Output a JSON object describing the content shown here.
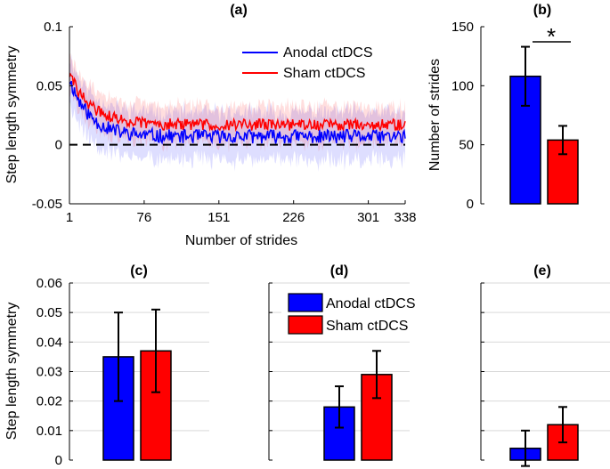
{
  "colors": {
    "anodal": "#0000ff",
    "sham": "#ff0000",
    "grid": "#d9d9d9"
  },
  "legend": {
    "anodal": "Anodal ctDCS",
    "sham": "Sham ctDCS"
  },
  "chart_data": [
    {
      "id": "a",
      "title": "(a)",
      "type": "line",
      "xlabel": "Number of strides",
      "ylabel": "Step length symmetry",
      "xlim": [
        1,
        338
      ],
      "ylim": [
        -0.05,
        0.1
      ],
      "xticks": [
        1,
        76,
        151,
        226,
        301,
        338
      ],
      "xtick_labels": [
        "1",
        "76",
        "151",
        "226",
        "301",
        "338"
      ],
      "yticks": [
        -0.05,
        0,
        0.05,
        0.1
      ],
      "ytick_labels": [
        "-0.05",
        "0",
        "0.05",
        "0.1"
      ],
      "zero_line": true,
      "legend_position": "top-right",
      "series": [
        {
          "name": "Anodal ctDCS",
          "key": "anodal",
          "start": 0.056,
          "plateau": 0.007,
          "tau": 20,
          "noise": 0.006,
          "band": 0.019,
          "seed": 11
        },
        {
          "name": "Sham ctDCS",
          "key": "sham",
          "start": 0.06,
          "plateau": 0.017,
          "tau": 22,
          "noise": 0.005,
          "band": 0.015,
          "seed": 29
        }
      ]
    },
    {
      "id": "b",
      "title": "(b)",
      "type": "bar",
      "ylabel": "Number of strides",
      "ylim": [
        0,
        150
      ],
      "yticks": [
        0,
        50,
        100,
        150
      ],
      "ytick_labels": [
        "0",
        "50",
        "100",
        "150"
      ],
      "categories": [
        "Anodal ctDCS",
        "Sham ctDCS"
      ],
      "values": [
        108,
        54
      ],
      "errors": [
        25,
        12
      ],
      "annotation": "*"
    },
    {
      "id": "c",
      "title": "(c)",
      "type": "bar",
      "ylabel": "Step length symmetry",
      "ylim": [
        0,
        0.06
      ],
      "yticks": [
        0,
        0.01,
        0.02,
        0.03,
        0.04,
        0.05,
        0.06
      ],
      "ytick_labels": [
        "0",
        "0.01",
        "0.02",
        "0.03",
        "0.04",
        "0.05",
        "0.06"
      ],
      "grid": true,
      "categories": [
        "Anodal ctDCS",
        "Sham ctDCS"
      ],
      "values": [
        0.035,
        0.037
      ],
      "errors": [
        0.015,
        0.014
      ]
    },
    {
      "id": "d",
      "title": "(d)",
      "type": "bar",
      "ylim": [
        0,
        0.06
      ],
      "grid": true,
      "legend_position": "top-left",
      "categories": [
        "Anodal ctDCS",
        "Sham ctDCS"
      ],
      "values": [
        0.018,
        0.029
      ],
      "errors": [
        0.007,
        0.008
      ]
    },
    {
      "id": "e",
      "title": "(e)",
      "type": "bar",
      "ylim": [
        0,
        0.06
      ],
      "grid": true,
      "categories": [
        "Anodal ctDCS",
        "Sham ctDCS"
      ],
      "values": [
        0.004,
        0.012
      ],
      "errors": [
        0.006,
        0.006
      ]
    }
  ]
}
